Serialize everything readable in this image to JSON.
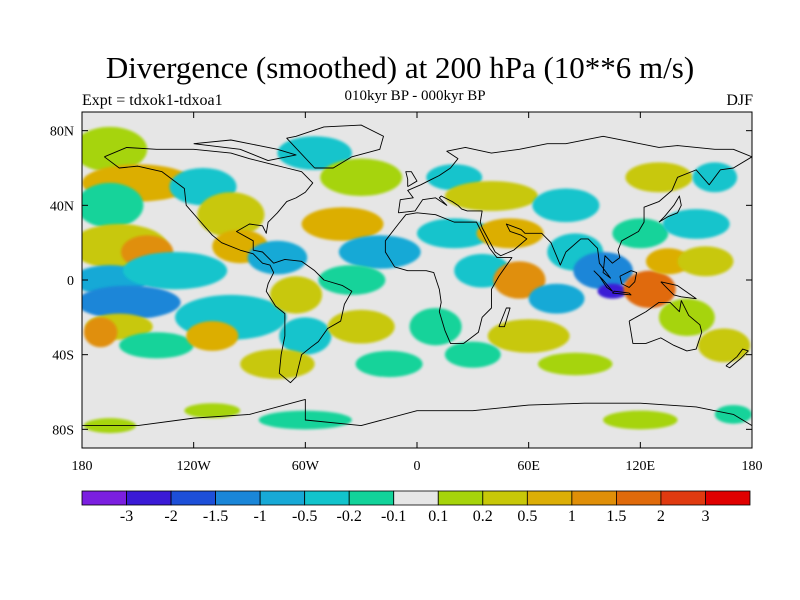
{
  "title": "Divergence (smoothed) at 200 hPa (10**6 m/s)",
  "experiment": "Expt = tdxok1-tdxoa1",
  "period": "010kyr BP - 000kyr BP",
  "season": "DJF",
  "map": {
    "lon_range": [
      -180,
      180
    ],
    "lat_range": [
      -90,
      90
    ],
    "lat_ticks": [
      {
        "value": 80,
        "label": "80N"
      },
      {
        "value": 40,
        "label": "40N"
      },
      {
        "value": 0,
        "label": "0"
      },
      {
        "value": -40,
        "label": "40S"
      },
      {
        "value": -80,
        "label": "80S"
      }
    ],
    "lon_ticks": [
      {
        "value": -180,
        "label": "180"
      },
      {
        "value": -120,
        "label": "120W"
      },
      {
        "value": -60,
        "label": "60W"
      },
      {
        "value": 0,
        "label": "0"
      },
      {
        "value": 60,
        "label": "60E"
      },
      {
        "value": 120,
        "label": "120E"
      },
      {
        "value": 180,
        "label": "180"
      }
    ],
    "background_color": "#e6e6e6"
  },
  "colorbar": {
    "colors": [
      "#7b1fe0",
      "#3a1ad6",
      "#1d4fd8",
      "#1a86d8",
      "#17a9d6",
      "#12c4cc",
      "#12d39a",
      "#e6e6e6",
      "#a6d40a",
      "#c8c808",
      "#dcae06",
      "#e08f08",
      "#e06a0a",
      "#e03a10",
      "#e00000"
    ],
    "labels": [
      "-3",
      "-2",
      "-1.5",
      "-1",
      "-0.5",
      "-0.2",
      "-0.1",
      "0.1",
      "0.2",
      "0.5",
      "1",
      "1.5",
      "2",
      "3"
    ]
  },
  "blobs": [
    {
      "lon": -165,
      "lat": 70,
      "rx": 20,
      "ry": 12,
      "color": "#a6d40a"
    },
    {
      "lon": -150,
      "lat": 52,
      "rx": 30,
      "ry": 10,
      "color": "#dcae06"
    },
    {
      "lon": -165,
      "lat": 40,
      "rx": 18,
      "ry": 12,
      "color": "#12d39a"
    },
    {
      "lon": -160,
      "lat": 18,
      "rx": 26,
      "ry": 12,
      "color": "#c8c808"
    },
    {
      "lon": -145,
      "lat": 15,
      "rx": 14,
      "ry": 9,
      "color": "#e08f08"
    },
    {
      "lon": -165,
      "lat": 0,
      "rx": 20,
      "ry": 8,
      "color": "#17a9d6"
    },
    {
      "lon": -130,
      "lat": 5,
      "rx": 28,
      "ry": 10,
      "color": "#12c4cc"
    },
    {
      "lon": -155,
      "lat": -12,
      "rx": 28,
      "ry": 9,
      "color": "#1a86d8"
    },
    {
      "lon": -160,
      "lat": -25,
      "rx": 18,
      "ry": 7,
      "color": "#c8c808"
    },
    {
      "lon": -170,
      "lat": -28,
      "rx": 9,
      "ry": 8,
      "color": "#e08f08"
    },
    {
      "lon": -140,
      "lat": -35,
      "rx": 20,
      "ry": 7,
      "color": "#12d39a"
    },
    {
      "lon": -165,
      "lat": -78,
      "rx": 14,
      "ry": 4,
      "color": "#a6d40a"
    },
    {
      "lon": -115,
      "lat": 50,
      "rx": 18,
      "ry": 10,
      "color": "#12c4cc"
    },
    {
      "lon": -100,
      "lat": 35,
      "rx": 18,
      "ry": 12,
      "color": "#c8c808"
    },
    {
      "lon": -95,
      "lat": 18,
      "rx": 15,
      "ry": 9,
      "color": "#dcae06"
    },
    {
      "lon": -75,
      "lat": 12,
      "rx": 16,
      "ry": 9,
      "color": "#17a9d6"
    },
    {
      "lon": -100,
      "lat": -20,
      "rx": 30,
      "ry": 12,
      "color": "#12c4cc"
    },
    {
      "lon": -110,
      "lat": -30,
      "rx": 14,
      "ry": 8,
      "color": "#dcae06"
    },
    {
      "lon": -65,
      "lat": -8,
      "rx": 14,
      "ry": 10,
      "color": "#c8c808"
    },
    {
      "lon": -60,
      "lat": -30,
      "rx": 14,
      "ry": 10,
      "color": "#12c4cc"
    },
    {
      "lon": -75,
      "lat": -45,
      "rx": 20,
      "ry": 8,
      "color": "#c8c808"
    },
    {
      "lon": -110,
      "lat": -70,
      "rx": 15,
      "ry": 4,
      "color": "#a6d40a"
    },
    {
      "lon": -60,
      "lat": -75,
      "rx": 25,
      "ry": 5,
      "color": "#12d39a"
    },
    {
      "lon": -55,
      "lat": 68,
      "rx": 20,
      "ry": 9,
      "color": "#12c4cc"
    },
    {
      "lon": -30,
      "lat": 55,
      "rx": 22,
      "ry": 10,
      "color": "#a6d40a"
    },
    {
      "lon": -40,
      "lat": 30,
      "rx": 22,
      "ry": 9,
      "color": "#dcae06"
    },
    {
      "lon": -20,
      "lat": 15,
      "rx": 22,
      "ry": 9,
      "color": "#17a9d6"
    },
    {
      "lon": -35,
      "lat": 0,
      "rx": 18,
      "ry": 8,
      "color": "#12d39a"
    },
    {
      "lon": -30,
      "lat": -25,
      "rx": 18,
      "ry": 9,
      "color": "#c8c808"
    },
    {
      "lon": -15,
      "lat": -45,
      "rx": 18,
      "ry": 7,
      "color": "#12d39a"
    },
    {
      "lon": 10,
      "lat": -25,
      "rx": 14,
      "ry": 10,
      "color": "#12d39a"
    },
    {
      "lon": 20,
      "lat": 55,
      "rx": 15,
      "ry": 7,
      "color": "#12c4cc"
    },
    {
      "lon": 40,
      "lat": 45,
      "rx": 25,
      "ry": 8,
      "color": "#c8c808"
    },
    {
      "lon": 20,
      "lat": 25,
      "rx": 20,
      "ry": 8,
      "color": "#12c4cc"
    },
    {
      "lon": 50,
      "lat": 25,
      "rx": 18,
      "ry": 8,
      "color": "#dcae06"
    },
    {
      "lon": 35,
      "lat": 5,
      "rx": 15,
      "ry": 9,
      "color": "#12c4cc"
    },
    {
      "lon": 55,
      "lat": 0,
      "rx": 14,
      "ry": 10,
      "color": "#e08f08"
    },
    {
      "lon": 75,
      "lat": -10,
      "rx": 15,
      "ry": 8,
      "color": "#17a9d6"
    },
    {
      "lon": 60,
      "lat": -30,
      "rx": 22,
      "ry": 9,
      "color": "#c8c808"
    },
    {
      "lon": 30,
      "lat": -40,
      "rx": 15,
      "ry": 7,
      "color": "#12d39a"
    },
    {
      "lon": 85,
      "lat": -45,
      "rx": 20,
      "ry": 6,
      "color": "#a6d40a"
    },
    {
      "lon": 80,
      "lat": 40,
      "rx": 18,
      "ry": 9,
      "color": "#12c4cc"
    },
    {
      "lon": 85,
      "lat": 15,
      "rx": 15,
      "ry": 10,
      "color": "#12c4cc"
    },
    {
      "lon": 100,
      "lat": 5,
      "rx": 16,
      "ry": 10,
      "color": "#1a86d8"
    },
    {
      "lon": 105,
      "lat": -6,
      "rx": 8,
      "ry": 4,
      "color": "#3a1ad6"
    },
    {
      "lon": 125,
      "lat": -5,
      "rx": 14,
      "ry": 10,
      "color": "#e06a0a"
    },
    {
      "lon": 135,
      "lat": 10,
      "rx": 12,
      "ry": 7,
      "color": "#dcae06"
    },
    {
      "lon": 120,
      "lat": 25,
      "rx": 15,
      "ry": 8,
      "color": "#12d39a"
    },
    {
      "lon": 150,
      "lat": 30,
      "rx": 18,
      "ry": 8,
      "color": "#12c4cc"
    },
    {
      "lon": 155,
      "lat": 10,
      "rx": 15,
      "ry": 8,
      "color": "#c8c808"
    },
    {
      "lon": 145,
      "lat": -20,
      "rx": 15,
      "ry": 10,
      "color": "#a6d40a"
    },
    {
      "lon": 165,
      "lat": -35,
      "rx": 14,
      "ry": 9,
      "color": "#c8c808"
    },
    {
      "lon": 130,
      "lat": 55,
      "rx": 18,
      "ry": 8,
      "color": "#c8c808"
    },
    {
      "lon": 160,
      "lat": 55,
      "rx": 12,
      "ry": 8,
      "color": "#12c4cc"
    },
    {
      "lon": 120,
      "lat": -75,
      "rx": 20,
      "ry": 5,
      "color": "#a6d40a"
    },
    {
      "lon": 170,
      "lat": -72,
      "rx": 10,
      "ry": 5,
      "color": "#12d39a"
    }
  ],
  "coastlines": [
    [
      [
        -168,
        66
      ],
      [
        -160,
        60
      ],
      [
        -150,
        61
      ],
      [
        -137,
        58
      ],
      [
        -125,
        49
      ],
      [
        -124,
        40
      ],
      [
        -117,
        32
      ],
      [
        -110,
        24
      ],
      [
        -105,
        20
      ],
      [
        -95,
        16
      ],
      [
        -88,
        14
      ],
      [
        -83,
        9
      ],
      [
        -79,
        8
      ],
      [
        -77,
        4
      ],
      [
        -80,
        -2
      ],
      [
        -81,
        -6
      ],
      [
        -76,
        -14
      ],
      [
        -71,
        -18
      ],
      [
        -71,
        -30
      ],
      [
        -73,
        -40
      ],
      [
        -74,
        -50
      ],
      [
        -68,
        -55
      ],
      [
        -65,
        -52
      ],
      [
        -62,
        -40
      ],
      [
        -57,
        -36
      ],
      [
        -53,
        -33
      ],
      [
        -48,
        -26
      ],
      [
        -41,
        -22
      ],
      [
        -39,
        -13
      ],
      [
        -35,
        -6
      ],
      [
        -40,
        -3
      ],
      [
        -50,
        0
      ],
      [
        -55,
        5
      ],
      [
        -62,
        10
      ],
      [
        -71,
        11
      ],
      [
        -77,
        9
      ],
      [
        -83,
        15
      ],
      [
        -88,
        16
      ],
      [
        -88,
        21
      ],
      [
        -97,
        26
      ],
      [
        -90,
        30
      ],
      [
        -83,
        29
      ],
      [
        -81,
        25
      ],
      [
        -80,
        31
      ],
      [
        -75,
        36
      ],
      [
        -70,
        42
      ],
      [
        -65,
        44
      ],
      [
        -60,
        47
      ],
      [
        -56,
        52
      ],
      [
        -62,
        58
      ],
      [
        -70,
        60
      ],
      [
        -78,
        62
      ],
      [
        -90,
        65
      ],
      [
        -100,
        68
      ],
      [
        -120,
        70
      ],
      [
        -140,
        70
      ],
      [
        -156,
        71
      ],
      [
        -168,
        66
      ]
    ],
    [
      [
        -55,
        60
      ],
      [
        -45,
        60
      ],
      [
        -35,
        66
      ],
      [
        -20,
        70
      ],
      [
        -18,
        77
      ],
      [
        -30,
        83
      ],
      [
        -50,
        82
      ],
      [
        -65,
        77
      ],
      [
        -70,
        76
      ],
      [
        -55,
        60
      ]
    ],
    [
      [
        -17,
        21
      ],
      [
        -17,
        15
      ],
      [
        -12,
        7
      ],
      [
        -5,
        5
      ],
      [
        5,
        5
      ],
      [
        9,
        4
      ],
      [
        12,
        -5
      ],
      [
        13,
        -12
      ],
      [
        12,
        -17
      ],
      [
        15,
        -27
      ],
      [
        18,
        -34
      ],
      [
        25,
        -34
      ],
      [
        33,
        -28
      ],
      [
        35,
        -20
      ],
      [
        40,
        -15
      ],
      [
        40,
        -5
      ],
      [
        44,
        2
      ],
      [
        51,
        12
      ],
      [
        43,
        12
      ],
      [
        39,
        17
      ],
      [
        34,
        27
      ],
      [
        32,
        31
      ],
      [
        25,
        31
      ],
      [
        20,
        31
      ],
      [
        10,
        35
      ],
      [
        0,
        36
      ],
      [
        -6,
        35
      ],
      [
        -10,
        30
      ],
      [
        -17,
        21
      ]
    ],
    [
      [
        -10,
        36
      ],
      [
        -9,
        43
      ],
      [
        -2,
        44
      ],
      [
        -5,
        48
      ],
      [
        2,
        51
      ],
      [
        8,
        54
      ],
      [
        12,
        56
      ],
      [
        18,
        60
      ],
      [
        22,
        65
      ],
      [
        16,
        69
      ],
      [
        26,
        71
      ],
      [
        40,
        68
      ],
      [
        55,
        70
      ],
      [
        70,
        73
      ],
      [
        80,
        73
      ],
      [
        100,
        77
      ],
      [
        115,
        74
      ],
      [
        130,
        71
      ],
      [
        140,
        72
      ],
      [
        160,
        70
      ],
      [
        170,
        70
      ],
      [
        180,
        66
      ],
      [
        170,
        60
      ],
      [
        163,
        59
      ],
      [
        157,
        51
      ],
      [
        150,
        59
      ],
      [
        140,
        55
      ],
      [
        137,
        48
      ],
      [
        130,
        42
      ],
      [
        122,
        39
      ],
      [
        122,
        31
      ],
      [
        119,
        26
      ],
      [
        110,
        21
      ],
      [
        108,
        16
      ],
      [
        109,
        12
      ],
      [
        105,
        9
      ],
      [
        101,
        13
      ],
      [
        100,
        4
      ],
      [
        104,
        1
      ],
      [
        98,
        9
      ],
      [
        97,
        17
      ],
      [
        92,
        22
      ],
      [
        88,
        22
      ],
      [
        80,
        15
      ],
      [
        77,
        8
      ],
      [
        72,
        20
      ],
      [
        67,
        25
      ],
      [
        58,
        25
      ],
      [
        56,
        27
      ],
      [
        48,
        30
      ],
      [
        50,
        26
      ],
      [
        56,
        24
      ],
      [
        59,
        22
      ],
      [
        52,
        16
      ],
      [
        45,
        13
      ],
      [
        42,
        15
      ],
      [
        35,
        28
      ],
      [
        34,
        31
      ],
      [
        35,
        37
      ],
      [
        27,
        37
      ],
      [
        24,
        38
      ],
      [
        22,
        40
      ],
      [
        19,
        42
      ],
      [
        13,
        45
      ],
      [
        12,
        44
      ],
      [
        16,
        40
      ],
      [
        10,
        44
      ],
      [
        3,
        43
      ],
      [
        -1,
        37
      ],
      [
        -10,
        36
      ]
    ],
    [
      [
        114,
        -22
      ],
      [
        116,
        -34
      ],
      [
        123,
        -34
      ],
      [
        131,
        -31
      ],
      [
        138,
        -35
      ],
      [
        145,
        -38
      ],
      [
        150,
        -37
      ],
      [
        153,
        -28
      ],
      [
        152,
        -24
      ],
      [
        146,
        -19
      ],
      [
        142,
        -11
      ],
      [
        141,
        -17
      ],
      [
        136,
        -12
      ],
      [
        130,
        -12
      ],
      [
        123,
        -17
      ],
      [
        114,
        -22
      ]
    ],
    [
      [
        95,
        5
      ],
      [
        100,
        0
      ],
      [
        105,
        -6
      ],
      [
        102,
        -4
      ],
      [
        98,
        2
      ],
      [
        95,
        5
      ]
    ],
    [
      [
        105,
        -7
      ],
      [
        115,
        -8
      ],
      [
        114,
        -7
      ],
      [
        106,
        -6
      ],
      [
        105,
        -7
      ]
    ],
    [
      [
        109,
        2
      ],
      [
        115,
        5
      ],
      [
        118,
        4
      ],
      [
        117,
        -1
      ],
      [
        114,
        -4
      ],
      [
        110,
        -2
      ],
      [
        109,
        2
      ]
    ],
    [
      [
        131,
        -1
      ],
      [
        140,
        -3
      ],
      [
        150,
        -10
      ],
      [
        142,
        -9
      ],
      [
        138,
        -8
      ],
      [
        131,
        -1
      ]
    ],
    [
      [
        130,
        31
      ],
      [
        135,
        34
      ],
      [
        140,
        36
      ],
      [
        142,
        40
      ],
      [
        141,
        45
      ],
      [
        138,
        40
      ],
      [
        133,
        34
      ],
      [
        130,
        31
      ]
    ],
    [
      [
        166,
        -46
      ],
      [
        172,
        -41
      ],
      [
        175,
        -37
      ],
      [
        178,
        -38
      ],
      [
        174,
        -42
      ],
      [
        168,
        -47
      ],
      [
        166,
        -46
      ]
    ],
    [
      [
        -5,
        50
      ],
      [
        0,
        53
      ],
      [
        -3,
        58
      ],
      [
        -6,
        58
      ],
      [
        -5,
        54
      ],
      [
        -5,
        50
      ]
    ],
    [
      [
        44,
        -25
      ],
      [
        48,
        -15
      ],
      [
        50,
        -15
      ],
      [
        47,
        -25
      ],
      [
        44,
        -25
      ]
    ],
    [
      [
        -180,
        -78
      ],
      [
        -150,
        -78
      ],
      [
        -120,
        -74
      ],
      [
        -90,
        -72
      ],
      [
        -60,
        -64
      ],
      [
        -60,
        -75
      ],
      [
        -30,
        -78
      ],
      [
        0,
        -70
      ],
      [
        30,
        -70
      ],
      [
        60,
        -67
      ],
      [
        90,
        -66
      ],
      [
        120,
        -66
      ],
      [
        150,
        -68
      ],
      [
        170,
        -72
      ],
      [
        180,
        -78
      ]
    ],
    [
      [
        -120,
        73
      ],
      [
        -100,
        75
      ],
      [
        -85,
        72
      ],
      [
        -75,
        70
      ],
      [
        -65,
        67
      ],
      [
        -80,
        64
      ],
      [
        -95,
        70
      ],
      [
        -120,
        73
      ]
    ]
  ]
}
